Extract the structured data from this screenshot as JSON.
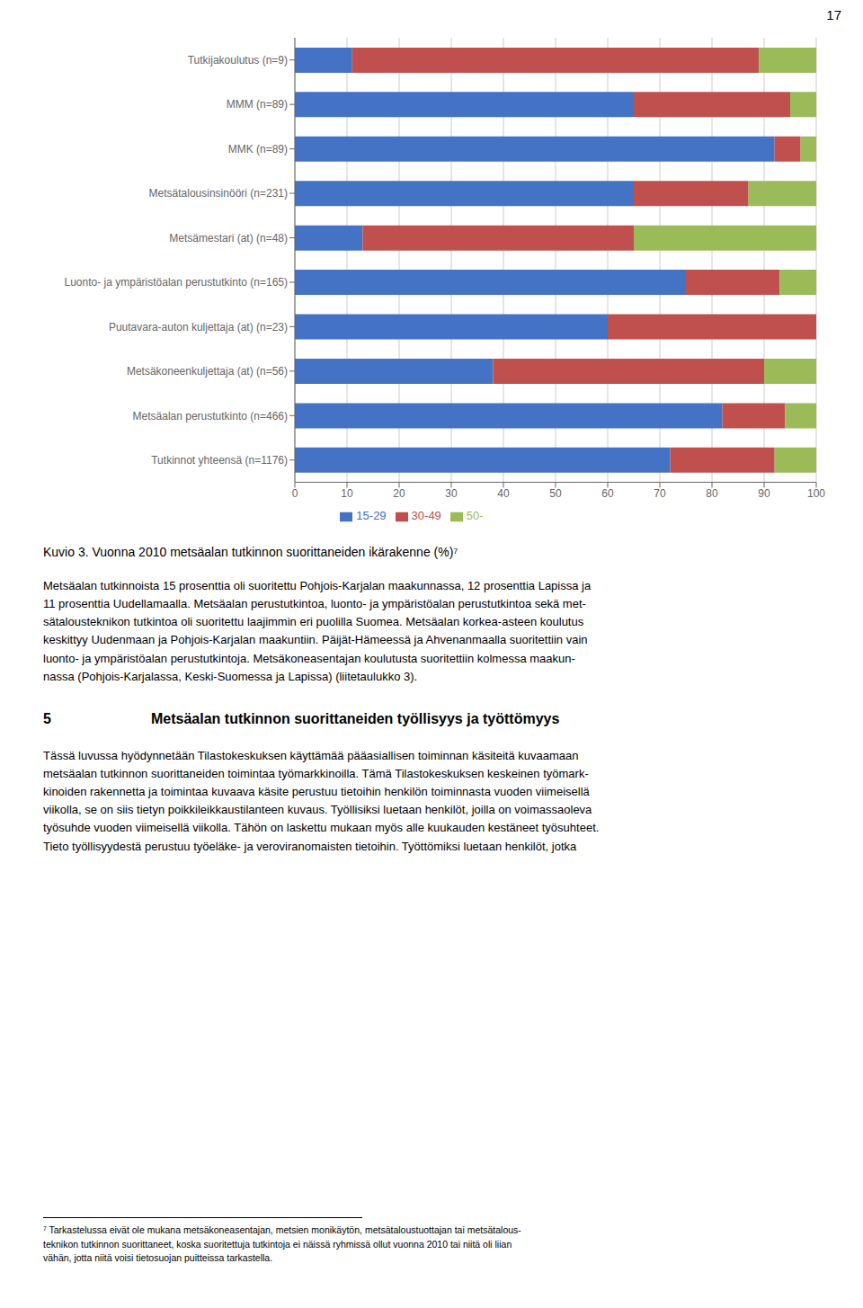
{
  "chart_data": {
    "type": "bar",
    "orientation": "horizontal",
    "stacked": true,
    "title": "Kuvio 3. Vuonna 2010 metsäalan tutkinnon suorittaneiden ikärakenne (%)⁷",
    "categories": [
      "Tutkijakoulutus (n=9)",
      "MMM (n=89)",
      "MMK (n=89)",
      "Metsätalousinsinööri (n=231)",
      "Metsämestari (at) (n=48)",
      "Luonto- ja ympäristöalan perustutkinto  (n=165)",
      "Puutavara-auton kuljettaja (at) (n=23)",
      "Metsäkoneenkuljettaja (at) (n=56)",
      "Metsäalan perustutkinto (n=466)",
      "Tutkinnot yhteensä (n=1176)"
    ],
    "series": [
      {
        "name": "15-29",
        "color": "#4472C4",
        "values": [
          11,
          65,
          92,
          65,
          13,
          75,
          60,
          38,
          82,
          72
        ]
      },
      {
        "name": "30-49",
        "color": "#C0504D",
        "values": [
          78,
          30,
          5,
          22,
          52,
          18,
          40,
          52,
          12,
          20
        ]
      },
      {
        "name": "50-",
        "color": "#9BBB59",
        "values": [
          11,
          5,
          3,
          13,
          35,
          7,
          0,
          10,
          6,
          8
        ]
      }
    ],
    "xlim": [
      0,
      100
    ],
    "xticks": [
      0,
      10,
      20,
      30,
      40,
      50,
      60,
      70,
      80,
      90,
      100
    ],
    "grid": true,
    "legend": "bottom",
    "annotations": [
      "17",
      "Metsäalan tutkinnoista 15 prosenttia oli suoritettu Pohjois-Karjalan maakunnassa, 12 prosenttia Lapissa ja\n11 prosenttia Uudellamaalla. Metsäalan perustutkintoa, luonto- ja ympäristöalan perustutkintoa sekä met-\nsätalousteknikon tutkintoa oli suoritettu laajimmin eri puolilla Suomea. Metsäalan korkea-asteen koulutus\nkeskittyy Uudenmaan ja Pohjois-Karjalan maakuntiin. Päijät-Hämeessä ja Ahvenanmaalla suoritettiin vain\nluonto- ja ympäristöalan perustutkintoja. Metsäkoneasentajan koulutusta suoritettiin kolmessa maakun-\nnassa (Pohjois-Karjalassa, Keski-Suomessa ja Lapissa) (liitetaulukko 3).",
      "5",
      "Metsäalan tutkinnon suorittaneiden työllisyys ja työttömyys",
      "Tässä luvussa hyödynnetään Tilastokeskuksen käyttämää pääasiallisen toiminnan käsiteitä kuvaamaan\nmetsäalan tutkinnon suorittaneiden toimintaa työmarkkinoilla. Tämä Tilastokeskuksen keskeinen työmark-\nkinoiden rakennetta ja toimintaa kuvaava käsite perustuu tietoihin henkilön toiminnasta vuoden viimeisellä\nviikolla, se on siis tietyn poikkileikkaustilanteen kuvaus. Työllisiksi luetaan henkilöt, joilla on voimassaoleva\ntyösuhde vuoden viimeisellä viikolla. Tähön on laskettu mukaan myös alle kuukauden kestäneet työsuhteet.\nTieto työllisyydestä perustuu työeläke- ja veroviranomaisten tietoihin. Työttömiksi luetaan henkilöt, jotka",
      "⁷ Tarkastelussa eivät ole mukana metsäkoneasentajan, metsien monikäytön, metsätaloustuottajan tai metsätalous-\nteknikon tutkinnon suorittaneet, koska suoritettuja tutkintoja ei näissä ryhmissä ollut vuonna 2010 tai niitä oli liian\nvähän, jotta niitä voisi tietosuojan puitteissa tarkastella."
    ]
  }
}
